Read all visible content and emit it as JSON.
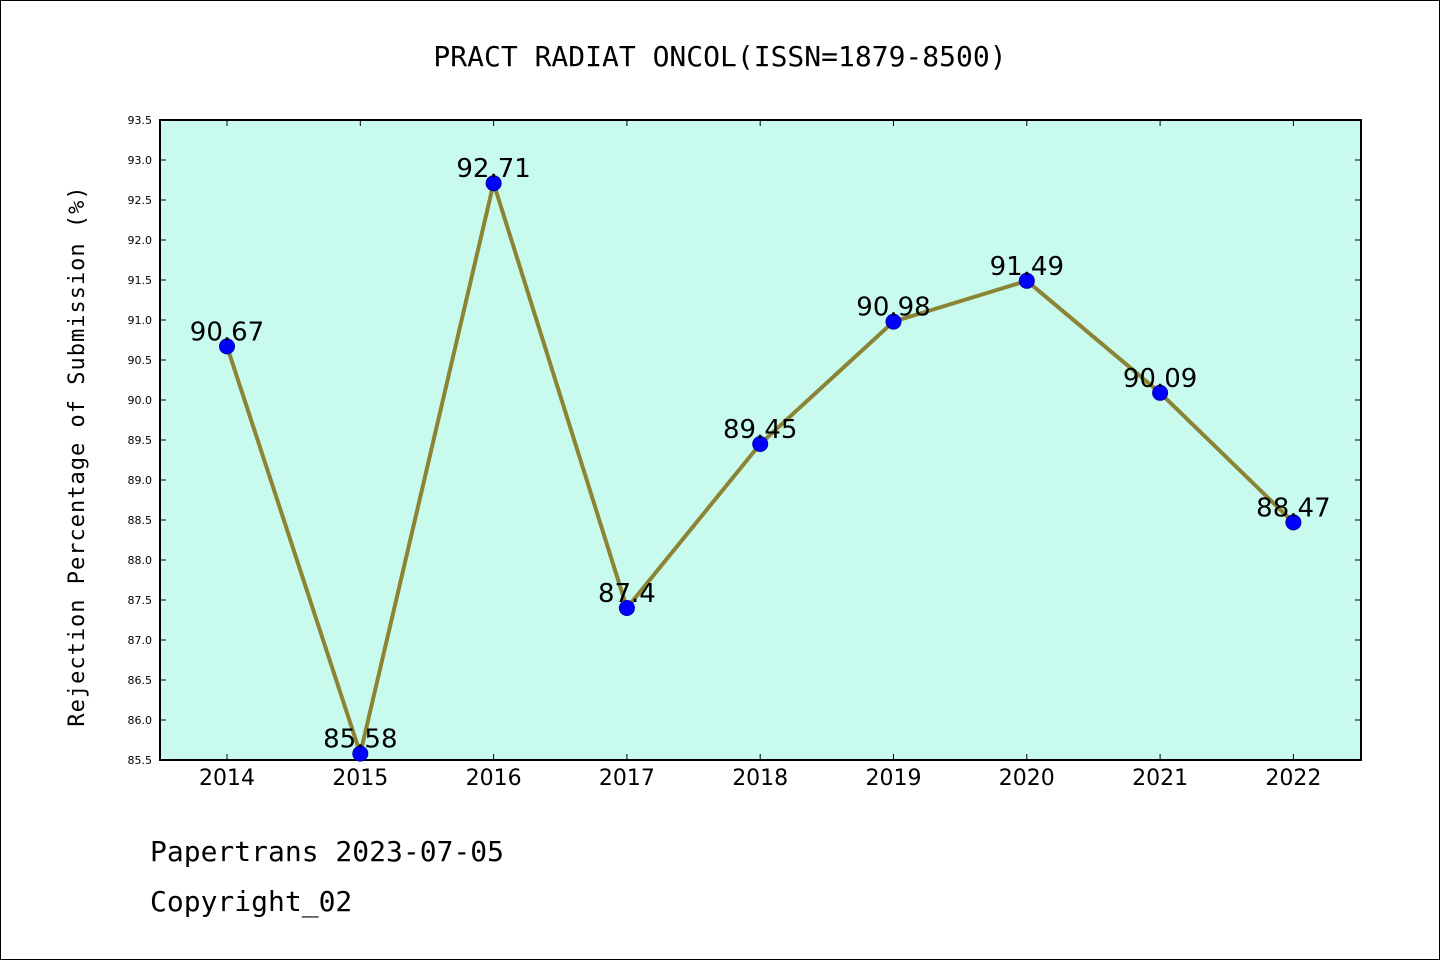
{
  "chart_data": {
    "type": "line",
    "title": "PRACT RADIAT ONCOL(ISSN=1879-8500)",
    "xlabel": "",
    "ylabel": "Rejection Percentage of Submission (%)",
    "categories": [
      "2014",
      "2015",
      "2016",
      "2017",
      "2018",
      "2019",
      "2020",
      "2021",
      "2022"
    ],
    "values": [
      90.67,
      85.58,
      92.71,
      87.4,
      89.45,
      90.98,
      91.49,
      90.09,
      88.47
    ],
    "data_labels": [
      "90.67",
      "85.58",
      "92.71",
      "87.4",
      "89.45",
      "90.98",
      "91.49",
      "90.09",
      "88.47"
    ],
    "ylim": [
      85.5,
      93.5
    ],
    "yticks": [
      "85.5",
      "86.0",
      "86.5",
      "87.0",
      "87.5",
      "88.0",
      "88.5",
      "89.0",
      "89.5",
      "90.0",
      "90.5",
      "91.0",
      "91.5",
      "92.0",
      "92.5",
      "93.0",
      "93.5"
    ],
    "grid": false,
    "legend": "none",
    "colors": {
      "plot_background": "#c8fbee",
      "line": "#8b8434",
      "marker": "#0000ff"
    }
  },
  "footer": {
    "source": "Papertrans 2023-07-05",
    "copyright": "Copyright_02"
  }
}
